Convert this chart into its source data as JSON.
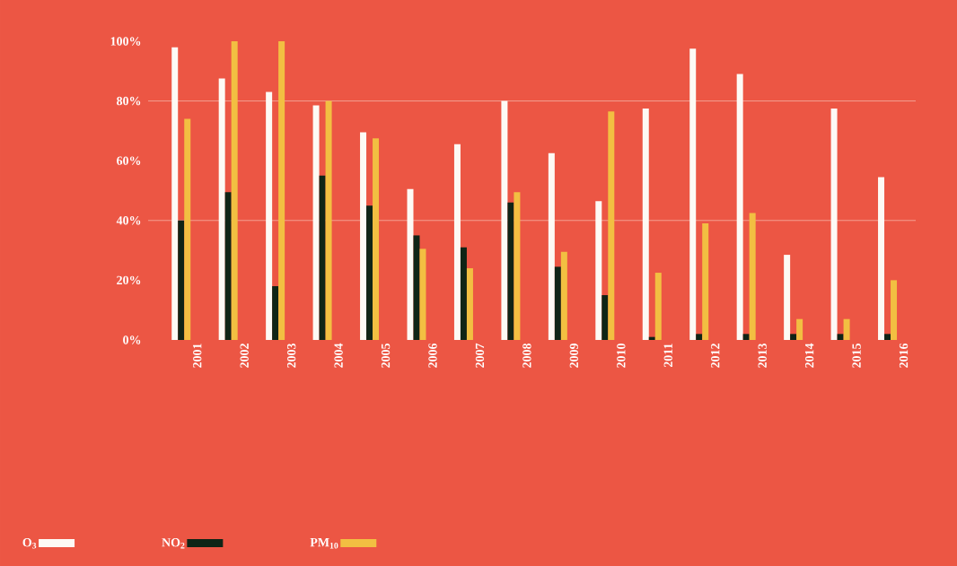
{
  "chart_data": {
    "type": "bar",
    "categories": [
      "2001",
      "2002",
      "2003",
      "2004",
      "2005",
      "2006",
      "2007",
      "2008",
      "2009",
      "2010",
      "2011",
      "2012",
      "2013",
      "2014",
      "2015",
      "2016"
    ],
    "series": [
      {
        "name": "O$_{3}$",
        "color": "#fdfaf5",
        "values": [
          98,
          87.5,
          83,
          78.5,
          69.5,
          50.5,
          65.5,
          80,
          62.5,
          46.5,
          77.5,
          97.5,
          89,
          28.5,
          77.5,
          54.5
        ]
      },
      {
        "name": "NO$_{2}$",
        "color": "#0f2416",
        "values": [
          40,
          49.5,
          18,
          55,
          45,
          35,
          31,
          46,
          24.5,
          15,
          1,
          2,
          2,
          2,
          2,
          2
        ]
      },
      {
        "name": "PM$_{10}$",
        "color": "#f2bf42",
        "values": [
          74,
          100,
          100,
          80,
          67.5,
          30.5,
          24,
          49.5,
          29.5,
          76.5,
          22.5,
          39,
          42.5,
          7,
          7,
          20
        ]
      }
    ],
    "ylim": [
      0,
      100
    ],
    "yticks": [
      {
        "value": 0,
        "label": "0%"
      },
      {
        "value": 20,
        "label": "20%"
      },
      {
        "value": 40,
        "label": "40%"
      },
      {
        "value": 60,
        "label": "60%"
      },
      {
        "value": 80,
        "label": "80%"
      },
      {
        "value": 100,
        "label": "100%"
      }
    ],
    "ref_lines": [
      {
        "axis": "y",
        "value": 40,
        "color": "#f5b3a6"
      },
      {
        "axis": "y",
        "value": 80,
        "color": "#f5b3a6"
      }
    ],
    "legend": "bottom left"
  }
}
